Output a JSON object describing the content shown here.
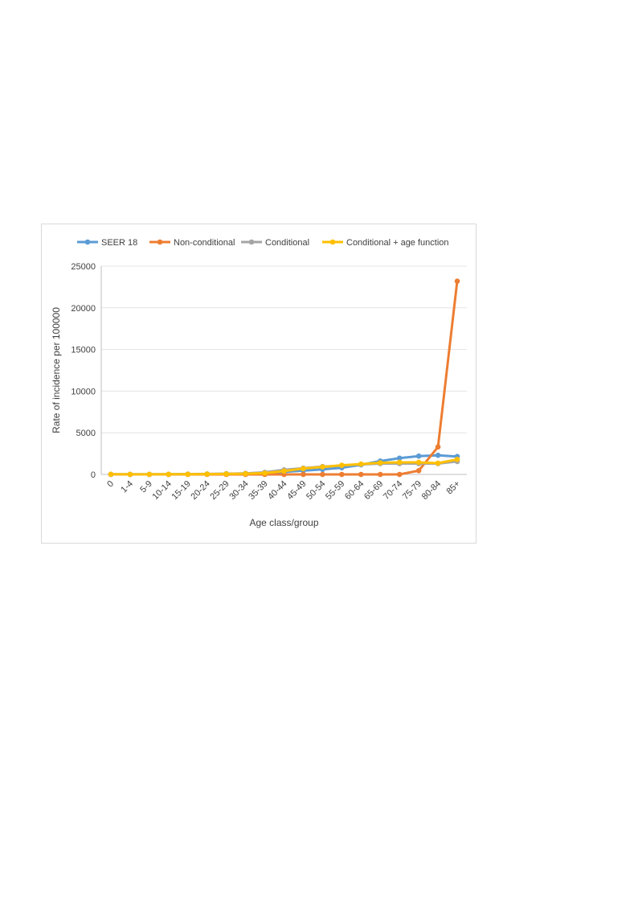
{
  "chart_data": {
    "type": "line",
    "title": "",
    "xlabel": "Age class/group",
    "ylabel": "Rate of incidence per 100000",
    "ylim": [
      0,
      25000
    ],
    "yticks": [
      0,
      5000,
      10000,
      15000,
      20000,
      25000
    ],
    "ytick_labels": [
      "0",
      "5000",
      "10000",
      "15000",
      "20000",
      "25000"
    ],
    "grid": "horizontal",
    "legend_position": "top",
    "categories": [
      "0",
      "1-4",
      "5-9",
      "10-14",
      "15-19",
      "20-24",
      "25-29",
      "30-34",
      "35-39",
      "40-44",
      "45-49",
      "50-54",
      "55-59",
      "60-64",
      "65-69",
      "70-74",
      "75-79",
      "80-84",
      "85+"
    ],
    "series": [
      {
        "name": "SEER 18",
        "color": "#5b9bd5",
        "values": [
          10,
          5,
          5,
          10,
          20,
          40,
          70,
          120,
          200,
          300,
          450,
          600,
          800,
          1150,
          1600,
          1950,
          2200,
          2300,
          2150
        ]
      },
      {
        "name": "Non-conditional",
        "color": "#ed7d31",
        "values": [
          0,
          0,
          0,
          0,
          0,
          0,
          0,
          0,
          0,
          0,
          0,
          0,
          0,
          0,
          0,
          0,
          450,
          3300,
          23200
        ]
      },
      {
        "name": "Conditional",
        "color": "#a5a5a5",
        "values": [
          20,
          10,
          10,
          20,
          40,
          60,
          90,
          120,
          250,
          550,
          750,
          950,
          1050,
          1200,
          1300,
          1300,
          1300,
          1300,
          1550
        ]
      },
      {
        "name": "Conditional + age function",
        "color": "#ffc000",
        "values": [
          15,
          10,
          10,
          15,
          25,
          40,
          60,
          90,
          150,
          400,
          700,
          900,
          1100,
          1250,
          1400,
          1450,
          1450,
          1350,
          1800
        ]
      }
    ]
  }
}
